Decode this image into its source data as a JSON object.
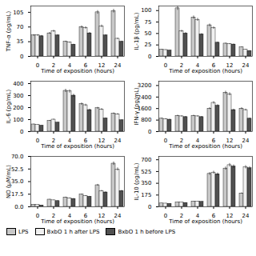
{
  "chart_data": [
    {
      "type": "bar",
      "categories": [
        "0",
        "2",
        "4",
        "6",
        "12",
        "24"
      ],
      "xlabel": "Time of exposition (hours)",
      "ylabel": "TNF-α (pg/mL)",
      "ylim": [
        0,
        120
      ],
      "yticks": [
        0,
        35,
        70,
        105
      ],
      "series": [
        {
          "name": "LPS",
          "color": "#c8c8c8",
          "values": [
            50,
            55,
            35,
            70,
            105,
            108
          ],
          "errors": [
            2,
            2.2,
            1.4,
            2.8,
            4.2,
            4.32
          ]
        },
        {
          "name": "BxbO 1 h after LPS",
          "color": "#f0f0f0",
          "values": [
            50,
            60,
            33,
            68,
            72,
            42
          ],
          "errors": [
            2,
            2.4,
            1.32,
            2.72,
            2.88,
            1.68
          ]
        },
        {
          "name": "BxbO 1 h before LPS",
          "color": "#505050",
          "values": [
            48,
            50,
            28,
            55,
            50,
            35
          ],
          "errors": [
            1.92,
            2,
            1.12,
            2.2,
            2,
            1.4
          ]
        }
      ]
    },
    {
      "type": "bar",
      "categories": [
        "0",
        "2",
        "4",
        "6",
        "12",
        "24"
      ],
      "xlabel": "Time of exposition (hours)",
      "ylabel": "IL-1β (pg/mL)",
      "ylim": [
        0,
        110
      ],
      "yticks": [
        0,
        25,
        50,
        75,
        100
      ],
      "series": [
        {
          "name": "LPS",
          "color": "#c8c8c8",
          "values": [
            15,
            105,
            85,
            68,
            28,
            20
          ],
          "errors": [
            0.6,
            4.2,
            3.4,
            2.72,
            1.12,
            0.8
          ]
        },
        {
          "name": "BxbO 1 h after LPS",
          "color": "#f0f0f0",
          "values": [
            14,
            55,
            80,
            62,
            27,
            15
          ],
          "errors": [
            0.56,
            2.2,
            3.2,
            2.48,
            1.08,
            0.6
          ]
        },
        {
          "name": "BxbO 1 h before LPS",
          "color": "#505050",
          "values": [
            13,
            50,
            48,
            30,
            26,
            12
          ],
          "errors": [
            0.52,
            2,
            1.92,
            1.2,
            1.04,
            0.48
          ]
        }
      ]
    },
    {
      "type": "bar",
      "categories": [
        "0",
        "2",
        "4",
        "6",
        "12",
        "24"
      ],
      "xlabel": "Time of exposition (hours)",
      "ylabel": "IL-6 (pg/mL)",
      "ylim": [
        0,
        420
      ],
      "yticks": [
        0,
        100,
        200,
        300,
        400
      ],
      "series": [
        {
          "name": "LPS",
          "color": "#c8c8c8",
          "values": [
            60,
            90,
            340,
            230,
            195,
            150
          ],
          "errors": [
            2.4,
            3.6,
            13.6,
            9.2,
            7.8,
            6
          ]
        },
        {
          "name": "BxbO 1 h after LPS",
          "color": "#f0f0f0",
          "values": [
            55,
            100,
            335,
            220,
            185,
            145
          ],
          "errors": [
            2.2,
            4,
            13.4,
            8.8,
            7.4,
            5.8
          ]
        },
        {
          "name": "BxbO 1 h before LPS",
          "color": "#505050",
          "values": [
            50,
            75,
            300,
            180,
            110,
            95
          ],
          "errors": [
            2,
            3,
            12,
            7.2,
            4.4,
            3.8
          ]
        }
      ]
    },
    {
      "type": "bar",
      "categories": [
        "0",
        "2",
        "4",
        "6",
        "12",
        "24"
      ],
      "xlabel": "Time of exposition (hours)",
      "ylabel": "IFN-γ (pg/mL)",
      "ylim": [
        0,
        3500
      ],
      "yticks": [
        0,
        800,
        1600,
        2400,
        3200
      ],
      "series": [
        {
          "name": "LPS",
          "color": "#c8c8c8",
          "values": [
            900,
            1100,
            1100,
            1600,
            2700,
            1600
          ],
          "errors": [
            36,
            44,
            44,
            64,
            108,
            64
          ]
        },
        {
          "name": "BxbO 1 h after LPS",
          "color": "#f0f0f0",
          "values": [
            870,
            1060,
            1060,
            2000,
            2600,
            1500
          ],
          "errors": [
            34.8,
            42.4,
            42.4,
            80,
            104,
            60
          ]
        },
        {
          "name": "BxbO 1 h before LPS",
          "color": "#505050",
          "values": [
            830,
            1010,
            1010,
            1800,
            1500,
            900
          ],
          "errors": [
            33.2,
            40.4,
            40.4,
            72,
            60,
            36
          ]
        }
      ]
    },
    {
      "type": "bar",
      "categories": [
        "0",
        "2",
        "4",
        "6",
        "12",
        "24"
      ],
      "xlabel": "Time of exposition (hours)",
      "ylabel": "NO (μM/mL)",
      "ylim": [
        0,
        70
      ],
      "yticks": [
        {
          "value": 0,
          "label": "0.0"
        },
        17.5,
        {
          "value": 35,
          "label": "35.0"
        },
        52.5,
        {
          "value": 70,
          "label": "70.0"
        }
      ],
      "series": [
        {
          "name": "LPS",
          "color": "#c8c8c8",
          "values": [
            3,
            10,
            13,
            17,
            30,
            60
          ],
          "errors": [
            0.12,
            0.4,
            0.52,
            0.68,
            1.2,
            2.4
          ]
        },
        {
          "name": "BxbO 1 h after LPS",
          "color": "#f0f0f0",
          "values": [
            2.5,
            9,
            12,
            15,
            22,
            52
          ],
          "errors": [
            0.1,
            0.36,
            0.48,
            0.6,
            0.88,
            2.08
          ]
        },
        {
          "name": "BxbO 1 h before LPS",
          "color": "#505050",
          "values": [
            2.0,
            8,
            11,
            14,
            20,
            22
          ],
          "errors": [
            0.08,
            0.32,
            0.44,
            0.56,
            0.8,
            0.88
          ]
        }
      ]
    },
    {
      "type": "bar",
      "categories": [
        "0",
        "2",
        "4",
        "6",
        "12",
        "24"
      ],
      "xlabel": "Time of exposition (hours)",
      "ylabel": "IL-10 (pg/mL)",
      "ylim": [
        0,
        750
      ],
      "yticks": [
        0,
        175,
        350,
        525,
        700
      ],
      "series": [
        {
          "name": "LPS",
          "color": "#c8c8c8",
          "values": [
            50,
            65,
            80,
            490,
            570,
            200
          ],
          "errors": [
            2,
            2.6,
            3.2,
            19.6,
            22.8,
            8
          ]
        },
        {
          "name": "BxbO 1 h after LPS",
          "color": "#f0f0f0",
          "values": [
            48,
            62,
            78,
            510,
            620,
            590
          ],
          "errors": [
            1.92,
            2.48,
            3.12,
            20.4,
            24.8,
            23.6
          ]
        },
        {
          "name": "BxbO 1 h before LPS",
          "color": "#505050",
          "values": [
            45,
            58,
            74,
            485,
            600,
            575
          ],
          "errors": [
            1.8,
            2.32,
            2.96,
            19.4,
            24,
            23
          ]
        }
      ]
    }
  ]
}
